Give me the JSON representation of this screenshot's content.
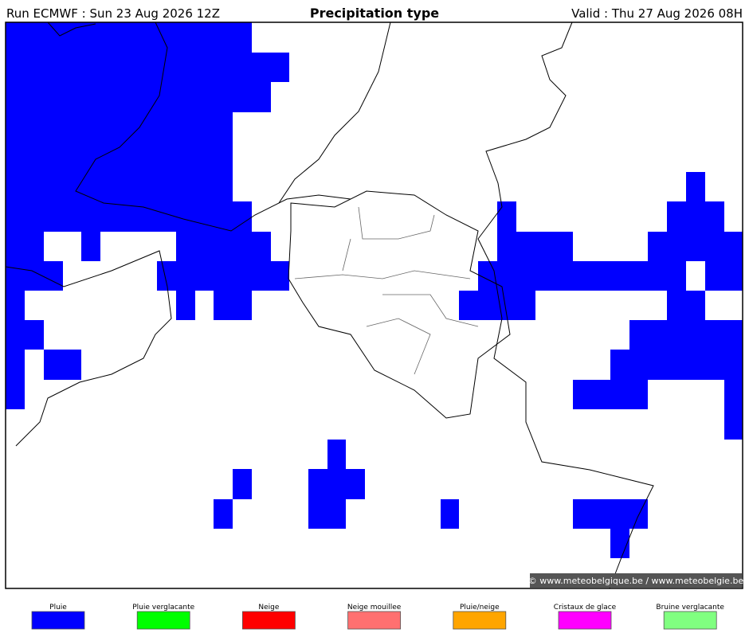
{
  "header": {
    "run": "Run ECMWF : Sun 23 Aug 2026 12Z",
    "title": "Precipitation type",
    "valid": "Valid : Thu 27 Aug 2026 08H"
  },
  "credit": "© www.meteobelgique.be / www.meteobelgie.be",
  "legend": [
    {
      "label": "Pluie",
      "color": "#0000ff"
    },
    {
      "label": "Pluie verglacante",
      "color": "#00ff00"
    },
    {
      "label": "Neige",
      "color": "#ff0000"
    },
    {
      "label": "Neige mouillee",
      "color": "#ff7070"
    },
    {
      "label": "Pluie/neige",
      "color": "#ffa500"
    },
    {
      "label": "Cristaux de glace",
      "color": "#ff00ff"
    },
    {
      "label": "Bruine verglacante",
      "color": "#80ff80"
    }
  ]
}
